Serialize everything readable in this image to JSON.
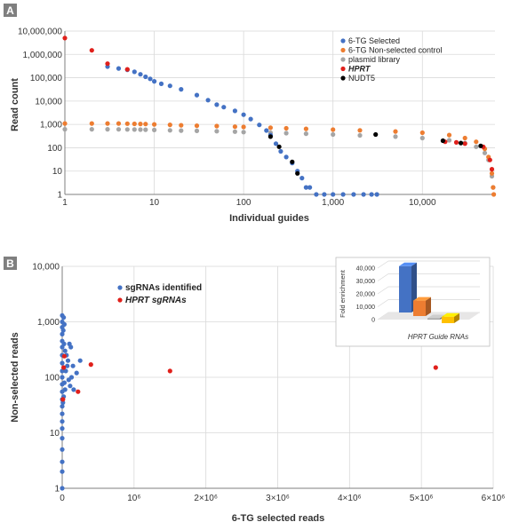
{
  "figure": {
    "panels": [
      {
        "panel_label": "A",
        "chart_data": {
          "type": "scatter",
          "xlabel": "Individual guides",
          "ylabel": "Read count",
          "x_scale": "log",
          "y_scale": "log",
          "xlim": [
            1,
            65000
          ],
          "ylim": [
            1,
            10000000
          ],
          "x_ticks": [
            {
              "v": 1,
              "label": "1"
            },
            {
              "v": 10,
              "label": "10"
            },
            {
              "v": 100,
              "label": "100"
            },
            {
              "v": 1000,
              "label": "1,000"
            },
            {
              "v": 10000,
              "label": "10,000"
            }
          ],
          "y_ticks": [
            {
              "v": 1,
              "label": "1"
            },
            {
              "v": 10,
              "label": "10"
            },
            {
              "v": 100,
              "label": "100"
            },
            {
              "v": 1000,
              "label": "1,000"
            },
            {
              "v": 10000,
              "label": "10,000"
            },
            {
              "v": 100000,
              "label": "100,000"
            },
            {
              "v": 1000000,
              "label": "1,000,000"
            },
            {
              "v": 10000000,
              "label": "10,000,000"
            }
          ],
          "grid": true,
          "legend_position": "top-right",
          "series": [
            {
              "name": "6-TG Selected",
              "color": "#4472c4",
              "italic": false,
              "points": [
                [
                  3,
                  300000
                ],
                [
                  4,
                  250000
                ],
                [
                  5,
                  220000
                ],
                [
                  6,
                  180000
                ],
                [
                  7,
                  140000
                ],
                [
                  8,
                  110000
                ],
                [
                  9,
                  90000
                ],
                [
                  10,
                  70000
                ],
                [
                  12,
                  55000
                ],
                [
                  15,
                  45000
                ],
                [
                  20,
                  32000
                ],
                [
                  30,
                  18000
                ],
                [
                  40,
                  11000
                ],
                [
                  50,
                  7000
                ],
                [
                  60,
                  5500
                ],
                [
                  80,
                  3800
                ],
                [
                  100,
                  2600
                ],
                [
                  120,
                  1700
                ],
                [
                  150,
                  950
                ],
                [
                  180,
                  550
                ],
                [
                  200,
                  350
                ],
                [
                  230,
                  150
                ],
                [
                  260,
                  70
                ],
                [
                  300,
                  40
                ],
                [
                  350,
                  22
                ],
                [
                  400,
                  10
                ],
                [
                  450,
                  5
                ],
                [
                  500,
                  2
                ],
                [
                  550,
                  2
                ],
                [
                  650,
                  1
                ],
                [
                  800,
                  1
                ],
                [
                  1000,
                  1
                ],
                [
                  1300,
                  1
                ],
                [
                  1700,
                  1
                ],
                [
                  2200,
                  1
                ],
                [
                  2700,
                  1
                ],
                [
                  3100,
                  1
                ]
              ]
            },
            {
              "name": "6-TG Non-selected control",
              "color": "#ed7d31",
              "italic": false,
              "points": [
                [
                  1,
                  1100
                ],
                [
                  2,
                  1100
                ],
                [
                  3,
                  1100
                ],
                [
                  4,
                  1100
                ],
                [
                  5,
                  1080
                ],
                [
                  6,
                  1060
                ],
                [
                  7,
                  1050
                ],
                [
                  8,
                  1040
                ],
                [
                  10,
                  1000
                ],
                [
                  15,
                  960
                ],
                [
                  20,
                  920
                ],
                [
                  30,
                  880
                ],
                [
                  50,
                  850
                ],
                [
                  80,
                  800
                ],
                [
                  100,
                  780
                ],
                [
                  200,
                  720
                ],
                [
                  300,
                  680
                ],
                [
                  500,
                  650
                ],
                [
                  1000,
                  600
                ],
                [
                  2000,
                  560
                ],
                [
                  5000,
                  500
                ],
                [
                  10000,
                  440
                ],
                [
                  20000,
                  350
                ],
                [
                  30000,
                  260
                ],
                [
                  40000,
                  180
                ],
                [
                  50000,
                  90
                ],
                [
                  55000,
                  40
                ],
                [
                  60000,
                  8
                ],
                [
                  62000,
                  2
                ],
                [
                  63000,
                  1
                ]
              ]
            },
            {
              "name": "plasmid library",
              "color": "#a5a5a5",
              "italic": false,
              "points": [
                [
                  1,
                  620
                ],
                [
                  2,
                  620
                ],
                [
                  3,
                  620
                ],
                [
                  4,
                  615
                ],
                [
                  5,
                  610
                ],
                [
                  6,
                  605
                ],
                [
                  7,
                  600
                ],
                [
                  8,
                  595
                ],
                [
                  10,
                  580
                ],
                [
                  15,
                  560
                ],
                [
                  20,
                  545
                ],
                [
                  30,
                  530
                ],
                [
                  50,
                  510
                ],
                [
                  80,
                  490
                ],
                [
                  100,
                  470
                ],
                [
                  200,
                  440
                ],
                [
                  300,
                  420
                ],
                [
                  500,
                  400
                ],
                [
                  1000,
                  370
                ],
                [
                  2000,
                  340
                ],
                [
                  5000,
                  300
                ],
                [
                  10000,
                  260
                ],
                [
                  20000,
                  210
                ],
                [
                  30000,
                  160
                ],
                [
                  40000,
                  110
                ],
                [
                  50000,
                  60
                ],
                [
                  55000,
                  30
                ],
                [
                  60000,
                  6
                ],
                [
                  62000,
                  2
                ]
              ]
            },
            {
              "name": "HPRT",
              "color": "#e0201b",
              "italic": true,
              "points": [
                [
                  1,
                  5000000
                ],
                [
                  2,
                  1500000
                ],
                [
                  3,
                  400000
                ],
                [
                  5,
                  230000
                ],
                [
                  18000,
                  180
                ],
                [
                  24000,
                  170
                ],
                [
                  30000,
                  150
                ],
                [
                  48000,
                  110
                ],
                [
                  57000,
                  30
                ],
                [
                  60000,
                  12
                ]
              ]
            },
            {
              "name": "NUDT5",
              "color": "#000000",
              "italic": false,
              "points": [
                [
                  200,
                  300
                ],
                [
                  250,
                  110
                ],
                [
                  350,
                  25
                ],
                [
                  400,
                  8
                ],
                [
                  3000,
                  370
                ],
                [
                  17000,
                  200
                ],
                [
                  27000,
                  160
                ],
                [
                  45000,
                  120
                ]
              ]
            }
          ]
        }
      },
      {
        "panel_label": "B",
        "chart_data": {
          "type": "scatter",
          "xlabel": "6-TG selected reads",
          "ylabel": "Non-selected reads",
          "x_scale": "linear",
          "y_scale": "log",
          "xlim": [
            0,
            6000000
          ],
          "ylim": [
            1,
            10000
          ],
          "x_ticks": [
            {
              "v": 0,
              "label": "0"
            },
            {
              "v": 1000000,
              "label": "10⁶"
            },
            {
              "v": 2000000,
              "label": "2×10⁶"
            },
            {
              "v": 3000000,
              "label": "3×10⁶"
            },
            {
              "v": 4000000,
              "label": "4×10⁶"
            },
            {
              "v": 5000000,
              "label": "5×10⁶"
            },
            {
              "v": 6000000,
              "label": "6×10⁶"
            }
          ],
          "y_ticks": [
            {
              "v": 1,
              "label": "1"
            },
            {
              "v": 10,
              "label": "10"
            },
            {
              "v": 100,
              "label": "100"
            },
            {
              "v": 1000,
              "label": "1,000"
            },
            {
              "v": 10000,
              "label": "10,000"
            }
          ],
          "grid": true,
          "legend_position": "top-left",
          "series": [
            {
              "name": "sgRNAs identified",
              "color": "#4472c4",
              "italic": false,
              "points": [
                [
                  0,
                  1300
                ],
                [
                  0,
                  1000
                ],
                [
                  0,
                  800
                ],
                [
                  0,
                  600
                ],
                [
                  0,
                  450
                ],
                [
                  0,
                  350
                ],
                [
                  0,
                  250
                ],
                [
                  0,
                  180
                ],
                [
                  0,
                  130
                ],
                [
                  0,
                  100
                ],
                [
                  0,
                  75
                ],
                [
                  0,
                  55
                ],
                [
                  0,
                  40
                ],
                [
                  0,
                  30
                ],
                [
                  0,
                  22
                ],
                [
                  0,
                  16
                ],
                [
                  0,
                  12
                ],
                [
                  0,
                  8
                ],
                [
                  0,
                  5
                ],
                [
                  0,
                  3
                ],
                [
                  0,
                  2
                ],
                [
                  0,
                  1
                ],
                [
                  20000,
                  1200
                ],
                [
                  30000,
                  900
                ],
                [
                  15000,
                  700
                ],
                [
                  25000,
                  400
                ],
                [
                  40000,
                  300
                ],
                [
                  60000,
                  250
                ],
                [
                  80000,
                  200
                ],
                [
                  100000,
                  400
                ],
                [
                  120000,
                  350
                ],
                [
                  150000,
                  160
                ],
                [
                  200000,
                  120
                ],
                [
                  250000,
                  200
                ],
                [
                  50000,
                  130
                ],
                [
                  70000,
                  160
                ],
                [
                  90000,
                  90
                ],
                [
                  110000,
                  70
                ],
                [
                  130000,
                  100
                ],
                [
                  160000,
                  60
                ],
                [
                  40000,
                  60
                ],
                [
                  20000,
                  45
                ],
                [
                  30000,
                  80
                ],
                [
                  10000,
                  35
                ]
              ]
            },
            {
              "name": "HPRT sgRNAs",
              "color": "#e0201b",
              "italic": true,
              "points": [
                [
                  400000,
                  170
                ],
                [
                  220000,
                  55
                ],
                [
                  1500000,
                  130
                ],
                [
                  5200000,
                  150
                ],
                [
                  30000,
                  240
                ],
                [
                  20000,
                  150
                ],
                [
                  10000,
                  40
                ]
              ]
            }
          ],
          "inset": {
            "type": "bar",
            "style": "3d",
            "ylabel": "Fold enrichment",
            "xlabel": "HPRT Guide RNAs",
            "ylim": [
              0,
              40000
            ],
            "y_ticks": [
              {
                "v": 0,
                "label": "0"
              },
              {
                "v": 10000,
                "label": "10,000"
              },
              {
                "v": 20000,
                "label": "20,000"
              },
              {
                "v": 30000,
                "label": "30,000"
              },
              {
                "v": 40000,
                "label": "40,000"
              }
            ],
            "series": [
              {
                "values": [
                  36000
                ],
                "color": "#4472c4"
              },
              {
                "values": [
                  12000
                ],
                "color": "#ed7d31"
              },
              {
                "values": [
                  1000
                ],
                "color": "#a5a5a5"
              },
              {
                "values": [
                  5000
                ],
                "color": "#ffc000"
              }
            ]
          }
        }
      }
    ]
  }
}
